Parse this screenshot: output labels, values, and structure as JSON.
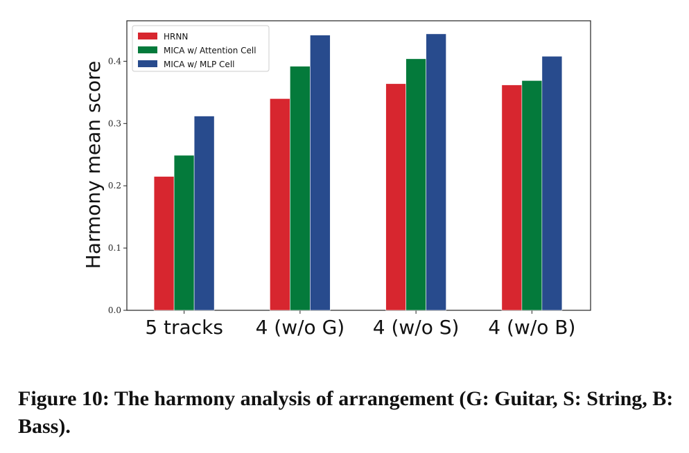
{
  "caption": "Figure 10: The harmony analysis of arrangement (G: Guitar, S: String, B: Bass).",
  "chart_data": {
    "type": "bar",
    "title": "",
    "xlabel": "",
    "ylabel": "Harmony mean score",
    "categories": [
      "5 tracks",
      "4 (w/o G)",
      "4 (w/o S)",
      "4 (w/o B)"
    ],
    "ylim": [
      0,
      0.465
    ],
    "yticks": [
      "0.0",
      "0.1",
      "0.2",
      "0.3",
      "0.4"
    ],
    "grid": false,
    "legend_position": "top-left",
    "series": [
      {
        "name": "HRNN",
        "color": "#d7262f",
        "values": [
          0.215,
          0.34,
          0.364,
          0.362
        ]
      },
      {
        "name": "MICA w/ Attention Cell",
        "color": "#047a3b",
        "values": [
          0.249,
          0.392,
          0.404,
          0.369
        ]
      },
      {
        "name": "MICA w/ MLP Cell",
        "color": "#284b8d",
        "values": [
          0.312,
          0.442,
          0.444,
          0.408
        ]
      }
    ]
  }
}
